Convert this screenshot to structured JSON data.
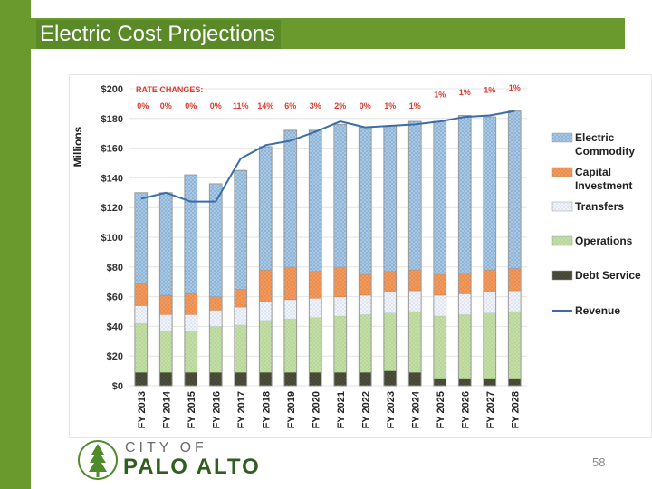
{
  "title": "Electric Cost Projections",
  "page_number": "58",
  "logo": {
    "city": "CITY OF",
    "name": "PALO ALTO"
  },
  "colors": {
    "green": "#6a9a2e",
    "electric_commodity": "#9dc0de",
    "capital_investment": "#f08a4b",
    "transfers": "#e8eef8",
    "operations": "#b9d89a",
    "debt_service": "#4b4b3a",
    "revenue": "#3a6ea8",
    "rate_red": "#e03a2f"
  },
  "chart_data": {
    "type": "bar",
    "stacked": true,
    "ylabel": "Millions",
    "ylim": [
      0,
      200
    ],
    "yticks": [
      0,
      20,
      40,
      60,
      80,
      100,
      120,
      140,
      160,
      180,
      200
    ],
    "ytick_labels": [
      "$0",
      "$20",
      "$40",
      "$60",
      "$80",
      "$100",
      "$120",
      "$140",
      "$160",
      "$180",
      "$200"
    ],
    "categories": [
      "FY 2013",
      "FY 2014",
      "FY 2015",
      "FY 2016",
      "FY 2017",
      "FY 2018",
      "FY 2019",
      "FY 2020",
      "FY 2021",
      "FY 2022",
      "FY 2023",
      "FY 2024",
      "FY 2025",
      "FY 2026",
      "FY 2027",
      "FY 2028"
    ],
    "rate_changes_label": "RATE CHANGES:",
    "rate_changes": [
      "0%",
      "0%",
      "0%",
      "0%",
      "11%",
      "14%",
      "6%",
      "3%",
      "2%",
      "0%",
      "1%",
      "1%",
      "1%",
      "1%",
      "1%",
      "1%"
    ],
    "series": [
      {
        "name": "Debt Service",
        "values": [
          9,
          9,
          9,
          9,
          9,
          9,
          9,
          9,
          9,
          9,
          10,
          9,
          5,
          5,
          5,
          5
        ]
      },
      {
        "name": "Operations",
        "values": [
          33,
          28,
          28,
          31,
          32,
          35,
          36,
          37,
          38,
          39,
          39,
          41,
          42,
          43,
          44,
          45
        ]
      },
      {
        "name": "Transfers",
        "values": [
          12,
          11,
          11,
          11,
          12,
          13,
          13,
          13,
          13,
          13,
          14,
          14,
          14,
          14,
          14,
          14
        ]
      },
      {
        "name": "Capital Investment",
        "values": [
          15,
          13,
          14,
          9,
          12,
          21,
          22,
          18,
          20,
          14,
          14,
          14,
          14,
          14,
          15,
          15
        ]
      },
      {
        "name": "Electric Commodity",
        "values": [
          61,
          69,
          80,
          76,
          80,
          83,
          92,
          95,
          96,
          99,
          98,
          100,
          103,
          106,
          103,
          106
        ]
      }
    ],
    "line": {
      "name": "Revenue",
      "values": [
        126,
        130,
        124,
        124,
        153,
        162,
        165,
        171,
        178,
        174,
        175,
        176,
        178,
        181,
        182,
        185
      ]
    },
    "legend": [
      "Electric Commodity",
      "Capital Investment",
      "Transfers",
      "Operations",
      "Debt Service",
      "Revenue"
    ],
    "legend_position": "right"
  }
}
